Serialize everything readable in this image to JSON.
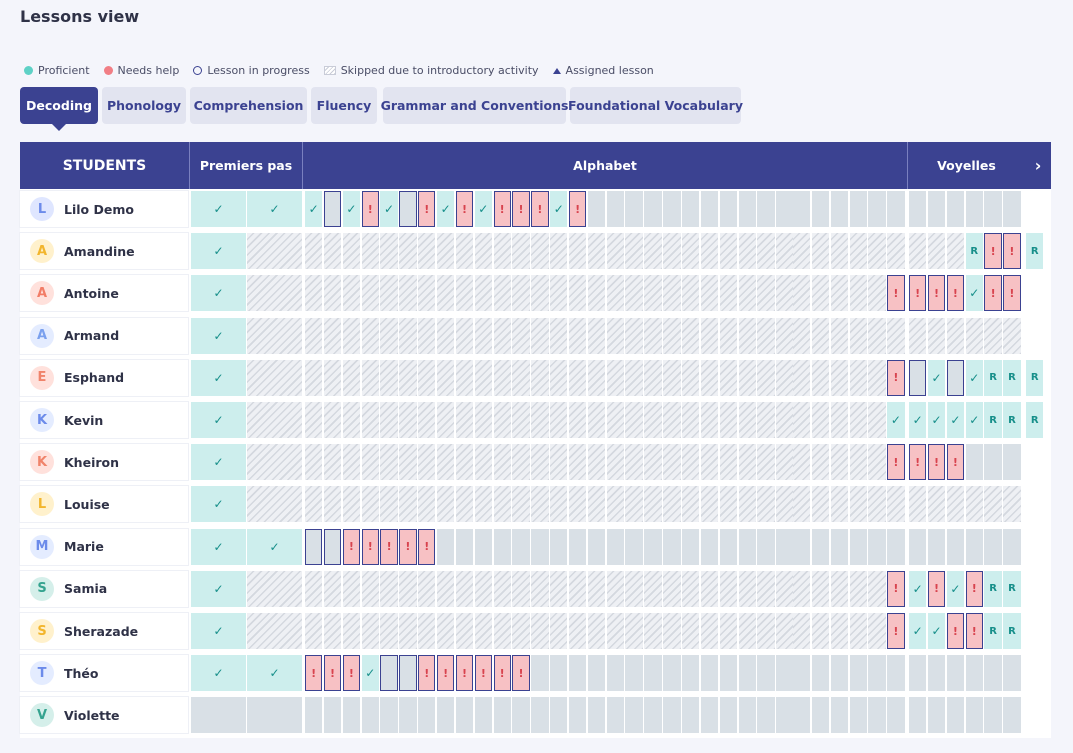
{
  "page_title": "Lessons view",
  "legend": [
    {
      "label": "Proficient",
      "icon": "proficient-dot-icon",
      "color": "#5ed1c6"
    },
    {
      "label": "Needs help",
      "icon": "needs-help-dot-icon",
      "color": "#f17e85"
    },
    {
      "label": "Lesson in progress",
      "icon": "in-progress-ring-icon",
      "color": "#3b4291"
    },
    {
      "label": "Skipped due to introductory activity",
      "icon": "hatched-swatch-icon"
    },
    {
      "label": "Assigned lesson",
      "icon": "triangle-up-icon"
    }
  ],
  "tabs": [
    "Decoding",
    "Phonology",
    "Comprehension",
    "Fluency",
    "Grammar and Conventions",
    "Foundational Vocabulary"
  ],
  "active_tab": "Decoding",
  "header": {
    "students": "STUDENTS",
    "groups": [
      "Premiers pas",
      "Alphabet",
      "Voyelles"
    ],
    "next_icon": "chevron-right-icon"
  },
  "symbols": {
    "check": "✓",
    "help": "!",
    "assigned": "R"
  },
  "students": [
    {
      "name": "Lilo Demo",
      "avatar_color": "#dfe6ff",
      "avatar_fg": "#6c8bea",
      "cells": "PPPIPNPINPNPNNNPNEEEEEEEEEEEEEEEEEEEEEEEEEEEEEEEEEEEEEEEEEEEEEE"
    },
    {
      "name": "Amandine",
      "avatar_color": "#fff1cc",
      "avatar_fg": "#f2b52c",
      "cells": "PSSSSSSSSSSSSSSSSSSSSSSSSSSSSSSSSSSSSRNNRNEEE"
    },
    {
      "name": "Antoine",
      "avatar_color": "#ffe1dc",
      "avatar_fg": "#f27c66",
      "cells": "PSSSSSSSSSSSSSSSSSSSSSSSSSSSSSSSSNNNNPNNNEEEE"
    },
    {
      "name": "Armand",
      "avatar_color": "#e4ecff",
      "avatar_fg": "#7aa0ee",
      "cells": "PSSSSSSSSSSSSSSSSSSSSSSSSSSSSSSSSSSSSSSSSSSSSSE"
    },
    {
      "name": "Esphand",
      "avatar_color": "#ffe1dc",
      "avatar_fg": "#f0836a",
      "cells": "PSSSSSSSSSSSSSSSSSSSSSSSSSSSSSSSSNIPIPRRRNRRE"
    },
    {
      "name": "Kevin",
      "avatar_color": "#e4ecff",
      "avatar_fg": "#6c8bea",
      "cells": "PSSSSSSSSSSSSSSSSSSSSSSSSSSSSSSSSPPPPPRRRRRRE"
    },
    {
      "name": "Kheiron",
      "avatar_color": "#ffe1dc",
      "avatar_fg": "#f0836a",
      "cells": "PSSSSSSSSSSSSSSSSSSSSSSSSSSSSSSSSNNNNEEEEEEEE"
    },
    {
      "name": "Louise",
      "avatar_color": "#fff1cc",
      "avatar_fg": "#f2b52c",
      "cells": "PSSSSSSSSSSSSSSSSSSSSSSSSSSSSSSSSSSSSSSSSSSSSR"
    },
    {
      "name": "Marie",
      "avatar_color": "#e4ecff",
      "avatar_fg": "#6c8bea",
      "cells": "PPIINNNNNEEEEEEEEEEEEEEEEEEEEEEEEEEEEEEEEEEEE"
    },
    {
      "name": "Samia",
      "avatar_color": "#d5efea",
      "avatar_fg": "#35a38f",
      "cells": "PSSSSSSSSSSSSSSSSSSSSSSSSSSSSSSSSNPNPNRRNNEEE"
    },
    {
      "name": "Sherazade",
      "avatar_color": "#fff1cc",
      "avatar_fg": "#f2b52c",
      "cells": "PSSSSSSSSSSSSSSSSSSSSSSSSSSSSSSSSNPPNNRRNNNEE"
    },
    {
      "name": "Théo",
      "avatar_color": "#e4ecff",
      "avatar_fg": "#6c8bea",
      "cells": "PPNNNPIINNNNNNEEEEEEEEEEEEEEEEEEEEEEEEEEEEEEE"
    },
    {
      "name": "Violette",
      "avatar_color": "#d5efea",
      "avatar_fg": "#35a38f",
      "cells": "EEEEEEEEEEEEEEEEEEEEEEEEEEEEEEEEEEEEEEEEEEEEE"
    }
  ]
}
